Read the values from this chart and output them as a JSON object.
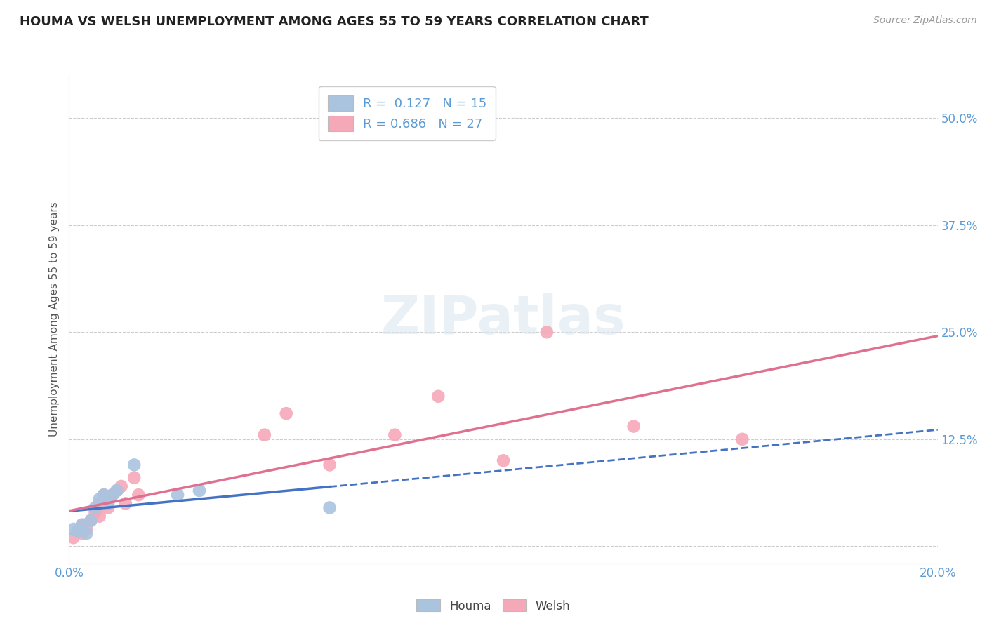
{
  "title": "HOUMA VS WELSH UNEMPLOYMENT AMONG AGES 55 TO 59 YEARS CORRELATION CHART",
  "source": "Source: ZipAtlas.com",
  "ylabel": "Unemployment Among Ages 55 to 59 years",
  "xlim": [
    0.0,
    0.2
  ],
  "ylim": [
    -0.02,
    0.55
  ],
  "yticks": [
    0.0,
    0.125,
    0.25,
    0.375,
    0.5
  ],
  "ytick_labels": [
    "",
    "12.5%",
    "25.0%",
    "37.5%",
    "50.0%"
  ],
  "xticks": [
    0.0,
    0.025,
    0.05,
    0.075,
    0.1,
    0.125,
    0.15,
    0.175,
    0.2
  ],
  "xtick_labels": [
    "0.0%",
    "",
    "",
    "",
    "",
    "",
    "",
    "",
    "20.0%"
  ],
  "houma_x": [
    0.001,
    0.002,
    0.003,
    0.004,
    0.005,
    0.006,
    0.007,
    0.008,
    0.009,
    0.01,
    0.011,
    0.015,
    0.025,
    0.03,
    0.06
  ],
  "houma_y": [
    0.02,
    0.018,
    0.025,
    0.015,
    0.03,
    0.045,
    0.055,
    0.06,
    0.05,
    0.06,
    0.065,
    0.095,
    0.06,
    0.065,
    0.045
  ],
  "welsh_x": [
    0.001,
    0.002,
    0.003,
    0.003,
    0.004,
    0.005,
    0.006,
    0.007,
    0.007,
    0.008,
    0.009,
    0.009,
    0.01,
    0.011,
    0.012,
    0.013,
    0.015,
    0.016,
    0.045,
    0.05,
    0.06,
    0.075,
    0.085,
    0.1,
    0.11,
    0.13,
    0.155
  ],
  "welsh_y": [
    0.01,
    0.018,
    0.025,
    0.015,
    0.02,
    0.03,
    0.04,
    0.05,
    0.035,
    0.06,
    0.055,
    0.045,
    0.06,
    0.065,
    0.07,
    0.05,
    0.08,
    0.06,
    0.13,
    0.155,
    0.095,
    0.13,
    0.175,
    0.1,
    0.25,
    0.14,
    0.125
  ],
  "houma_color": "#aac4e0",
  "welsh_color": "#f5a8b8",
  "houma_line_color": "#4472c4",
  "welsh_line_color": "#e07090",
  "houma_R": 0.127,
  "houma_N": 15,
  "welsh_R": 0.686,
  "welsh_N": 27,
  "legend_label_houma": "Houma",
  "legend_label_welsh": "Welsh",
  "grid_color": "#cccccc",
  "background_color": "#ffffff",
  "watermark": "ZIPatlas",
  "title_fontsize": 13,
  "tick_label_color": "#5b9bd5",
  "source_color": "#999999"
}
